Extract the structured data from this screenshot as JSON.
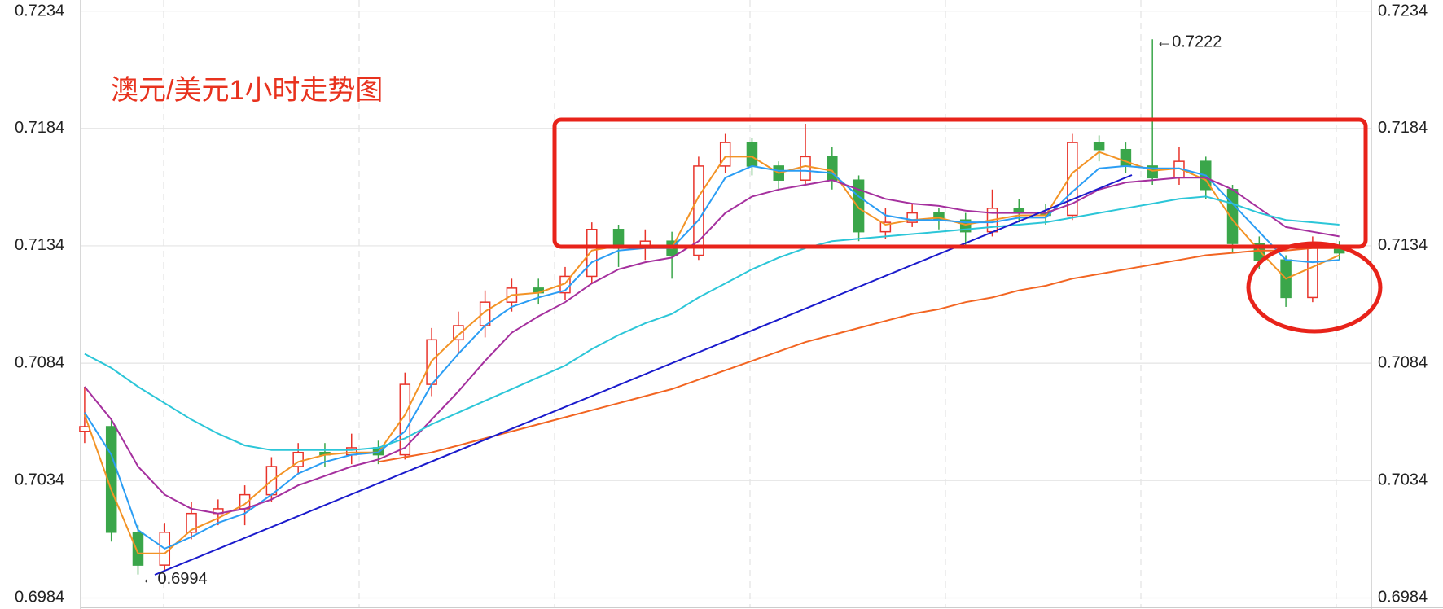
{
  "chart_data": {
    "type": "candlestick",
    "title": "澳元/美元1小时走势图",
    "ylim": [
      0.6984,
      0.7234
    ],
    "yticks": [
      0.6984,
      0.7034,
      0.7084,
      0.7134,
      0.7184,
      0.7234
    ],
    "xlim": [
      -0.15,
      48.2
    ],
    "grid": true,
    "x": [
      0,
      1,
      2,
      3,
      4,
      5,
      6,
      7,
      8,
      9,
      10,
      11,
      12,
      13,
      14,
      15,
      16,
      17,
      18,
      19,
      20,
      21,
      22,
      23,
      24,
      25,
      26,
      27,
      28,
      29,
      30,
      31,
      32,
      33,
      34,
      35,
      36,
      37,
      38,
      39,
      40,
      41,
      42,
      43,
      44,
      45,
      46,
      47
    ],
    "open": [
      0.7055,
      0.7057,
      0.7012,
      0.6998,
      0.7012,
      0.702,
      0.7022,
      0.7028,
      0.704,
      0.7046,
      0.7045,
      0.7048,
      0.7045,
      0.7075,
      0.7094,
      0.71,
      0.711,
      0.7116,
      0.7114,
      0.7121,
      0.7141,
      0.7133,
      0.7136,
      0.713,
      0.7168,
      0.7178,
      0.7168,
      0.7162,
      0.7172,
      0.7162,
      0.714,
      0.7144,
      0.7148,
      0.7145,
      0.714,
      0.715,
      0.7148,
      0.7147,
      0.7178,
      0.7175,
      0.7168,
      0.7163,
      0.717,
      0.7158,
      0.7135,
      0.7128,
      0.7112,
      0.7133
    ],
    "high": [
      0.7074,
      0.706,
      0.7015,
      0.7016,
      0.7025,
      0.7026,
      0.7032,
      0.7044,
      0.705,
      0.705,
      0.7054,
      0.7051,
      0.708,
      0.7099,
      0.7106,
      0.7115,
      0.712,
      0.712,
      0.7125,
      0.7144,
      0.7143,
      0.7141,
      0.714,
      0.7172,
      0.7182,
      0.718,
      0.717,
      0.7186,
      0.7176,
      0.7164,
      0.715,
      0.7152,
      0.715,
      0.7148,
      0.7158,
      0.7154,
      0.7152,
      0.7182,
      0.7181,
      0.7178,
      0.7222,
      0.7176,
      0.7172,
      0.716,
      0.7138,
      0.713,
      0.7138,
      0.7136
    ],
    "low": [
      0.705,
      0.7008,
      0.6994,
      0.6996,
      0.7009,
      0.7015,
      0.7015,
      0.7025,
      0.7037,
      0.704,
      0.7041,
      0.7041,
      0.7043,
      0.707,
      0.7088,
      0.7095,
      0.7106,
      0.7109,
      0.7111,
      0.7118,
      0.7125,
      0.7128,
      0.712,
      0.7128,
      0.7165,
      0.7164,
      0.7158,
      0.716,
      0.7158,
      0.7136,
      0.7137,
      0.7142,
      0.7141,
      0.7133,
      0.7138,
      0.7144,
      0.7143,
      0.7145,
      0.717,
      0.7165,
      0.716,
      0.716,
      0.7154,
      0.7131,
      0.7124,
      0.7108,
      0.711,
      0.7128
    ],
    "close": [
      0.7057,
      0.7012,
      0.6998,
      0.7012,
      0.702,
      0.7022,
      0.7028,
      0.704,
      0.7046,
      0.7045,
      0.7048,
      0.7045,
      0.7075,
      0.7094,
      0.71,
      0.711,
      0.7116,
      0.7114,
      0.7121,
      0.7141,
      0.7133,
      0.7136,
      0.713,
      0.7168,
      0.7178,
      0.7168,
      0.7162,
      0.7172,
      0.7162,
      0.714,
      0.7144,
      0.7148,
      0.7145,
      0.714,
      0.715,
      0.7148,
      0.7147,
      0.7178,
      0.7175,
      0.7168,
      0.7163,
      0.717,
      0.7158,
      0.7135,
      0.7128,
      0.7112,
      0.7133,
      0.7131
    ],
    "up_color": "#e8332a",
    "down_color": "#3aa64a",
    "series": [
      {
        "color": "#f39325",
        "values": [
          0.7062,
          0.703,
          0.7003,
          0.7003,
          0.7013,
          0.7018,
          0.7024,
          0.7034,
          0.7042,
          0.7045,
          0.7046,
          0.7046,
          0.7062,
          0.7085,
          0.7096,
          0.7106,
          0.7113,
          0.7114,
          0.7118,
          0.7132,
          0.7134,
          0.7134,
          0.7133,
          0.7155,
          0.7172,
          0.7172,
          0.7165,
          0.7168,
          0.7166,
          0.715,
          0.7143,
          0.7145,
          0.7146,
          0.7143,
          0.7145,
          0.7147,
          0.7147,
          0.7165,
          0.7174,
          0.717,
          0.7166,
          0.7167,
          0.7162,
          0.7145,
          0.7132,
          0.712,
          0.7125,
          0.713
        ]
      },
      {
        "color": "#2a9df4",
        "values": [
          0.7063,
          0.7045,
          0.7013,
          0.7005,
          0.701,
          0.7016,
          0.702,
          0.7028,
          0.7037,
          0.7042,
          0.7045,
          0.7046,
          0.7055,
          0.7075,
          0.7088,
          0.71,
          0.7108,
          0.7112,
          0.7115,
          0.7127,
          0.7132,
          0.7133,
          0.7133,
          0.7145,
          0.7163,
          0.7168,
          0.7166,
          0.7166,
          0.7165,
          0.7155,
          0.7147,
          0.7145,
          0.7145,
          0.7144,
          0.7144,
          0.7146,
          0.7146,
          0.7157,
          0.7167,
          0.7168,
          0.7167,
          0.7167,
          0.7164,
          0.7152,
          0.714,
          0.7128,
          0.7127,
          0.7128
        ]
      },
      {
        "color": "#a5309e",
        "values": [
          0.7074,
          0.706,
          0.704,
          0.7028,
          0.7022,
          0.702,
          0.7022,
          0.7026,
          0.7032,
          0.7036,
          0.704,
          0.7043,
          0.7048,
          0.706,
          0.7072,
          0.7085,
          0.7097,
          0.7104,
          0.711,
          0.7118,
          0.7124,
          0.7127,
          0.7129,
          0.7136,
          0.7148,
          0.7155,
          0.7158,
          0.716,
          0.7162,
          0.7158,
          0.7154,
          0.7152,
          0.7151,
          0.7149,
          0.7148,
          0.7148,
          0.7148,
          0.7152,
          0.7158,
          0.7161,
          0.7162,
          0.7163,
          0.7163,
          0.7158,
          0.715,
          0.7142,
          0.714,
          0.7138
        ]
      },
      {
        "color": "#2cc6d8",
        "values": [
          0.7088,
          0.7082,
          0.7074,
          0.7067,
          0.706,
          0.7054,
          0.7049,
          0.7047,
          0.7047,
          0.7047,
          0.7047,
          0.7048,
          0.7052,
          0.7058,
          0.7063,
          0.7068,
          0.7073,
          0.7078,
          0.7083,
          0.709,
          0.7096,
          0.7101,
          0.7105,
          0.7112,
          0.7118,
          0.7124,
          0.7129,
          0.7133,
          0.7136,
          0.7137,
          0.7138,
          0.7139,
          0.714,
          0.7141,
          0.7142,
          0.7143,
          0.7144,
          0.7146,
          0.7148,
          0.715,
          0.7152,
          0.7154,
          0.7155,
          0.7152,
          0.7148,
          0.7145,
          0.7144,
          0.7143
        ]
      },
      {
        "color": "#f26522",
        "values": [
          null,
          null,
          null,
          null,
          null,
          null,
          null,
          null,
          null,
          null,
          null,
          0.7042,
          0.7044,
          0.7046,
          0.7049,
          0.7052,
          0.7055,
          0.7058,
          0.7061,
          0.7064,
          0.7067,
          0.707,
          0.7073,
          0.7077,
          0.7081,
          0.7085,
          0.7089,
          0.7093,
          0.7096,
          0.7099,
          0.7102,
          0.7105,
          0.7107,
          0.711,
          0.7112,
          0.7115,
          0.7117,
          0.712,
          0.7122,
          0.7124,
          0.7126,
          0.7128,
          0.713,
          0.7131,
          0.7132,
          0.7132,
          0.7133,
          0.7133
        ]
      }
    ],
    "annotations": [
      {
        "text": "←0.7222",
        "x": 40,
        "y": 0.7222
      },
      {
        "text": "←0.6994",
        "x": 2,
        "y": 0.6994
      }
    ]
  }
}
